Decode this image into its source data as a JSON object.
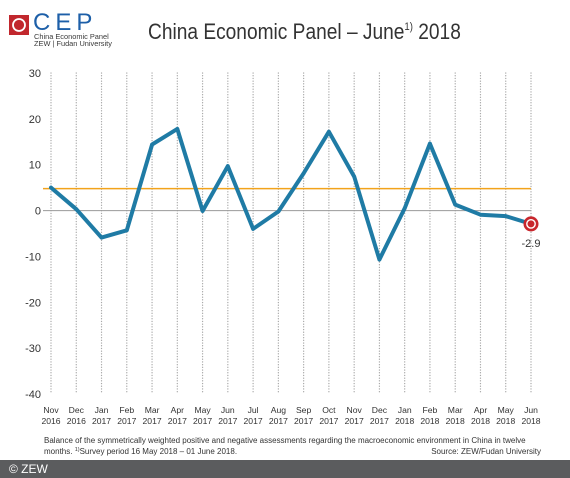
{
  "logo": {
    "wordmark": "CEP",
    "line1": "China Economic Panel",
    "line2": "ZEW | Fudan University",
    "icon": "cep-logo-icon"
  },
  "title": {
    "text": "China Economic Panel – June",
    "footnote_marker": "1)",
    "year": "2018"
  },
  "chart_data": {
    "type": "line",
    "categories": [
      {
        "month": "Nov",
        "year": "2016"
      },
      {
        "month": "Dec",
        "year": "2016"
      },
      {
        "month": "Jan",
        "year": "2017"
      },
      {
        "month": "Feb",
        "year": "2017"
      },
      {
        "month": "Mar",
        "year": "2017"
      },
      {
        "month": "Apr",
        "year": "2017"
      },
      {
        "month": "May",
        "year": "2017"
      },
      {
        "month": "Jun",
        "year": "2017"
      },
      {
        "month": "Jul",
        "year": "2017"
      },
      {
        "month": "Aug",
        "year": "2017"
      },
      {
        "month": "Sep",
        "year": "2017"
      },
      {
        "month": "Oct",
        "year": "2017"
      },
      {
        "month": "Nov",
        "year": "2017"
      },
      {
        "month": "Dec",
        "year": "2017"
      },
      {
        "month": "Jan",
        "year": "2018"
      },
      {
        "month": "Feb",
        "year": "2018"
      },
      {
        "month": "Mar",
        "year": "2018"
      },
      {
        "month": "Apr",
        "year": "2018"
      },
      {
        "month": "May",
        "year": "2018"
      },
      {
        "month": "Jun",
        "year": "2018"
      }
    ],
    "series": [
      {
        "values": [
          5.0,
          0.3,
          -5.9,
          -4.3,
          14.4,
          17.8,
          -0.1,
          9.7,
          -4.0,
          -0.2,
          8.1,
          17.2,
          7.4,
          -10.7,
          0.5,
          14.6,
          1.3,
          -0.9,
          -1.2,
          -2.9
        ],
        "color": "#1f7ba5"
      }
    ],
    "reference_lines": [
      {
        "value": 0,
        "color": "#9a9a9a"
      },
      {
        "value": 4.8,
        "color": "#f2a31b"
      }
    ],
    "ylim": [
      -40,
      30
    ],
    "yticks": [
      30,
      20,
      10,
      0,
      -10,
      -20,
      -30,
      -40
    ],
    "grid": {
      "vertical": true,
      "horizontal": false
    },
    "annotations": [
      {
        "category_index": 19,
        "value": -2.9,
        "label": "-2.9",
        "marker_color": "#c8262c"
      }
    ]
  },
  "footer": {
    "note": "Balance of the symmetrically weighted positive and negative assessments regarding the macroeconomic environment in China in twelve months.",
    "footnote_marker": "1)",
    "footnote": "Survey period 16 May 2018 – 01 June 2018.",
    "source": "Source: ZEW/Fudan University"
  },
  "copyright": "© ZEW",
  "colors": {
    "brand_red": "#c1272d",
    "brand_blue": "#1d5fa8",
    "grid": "#a9a9a9",
    "footer_bar": "#5b5c5e"
  }
}
